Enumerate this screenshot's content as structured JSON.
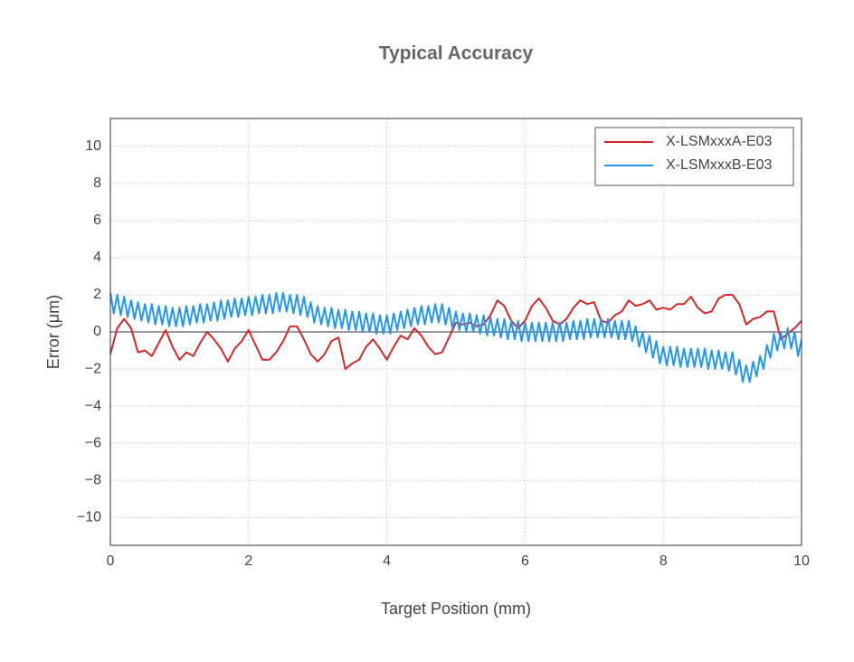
{
  "chart_data": {
    "type": "line",
    "title": "Typical Accuracy",
    "x_label": "Target Position (mm)",
    "y_label": "Error (μm)",
    "xlim": [
      0,
      10
    ],
    "ylim": [
      -11.5,
      11.5
    ],
    "xticks": [
      0,
      2,
      4,
      6,
      8,
      10
    ],
    "yticks": [
      {
        "value": -10,
        "label": "−10"
      },
      {
        "value": -8,
        "label": "−8"
      },
      {
        "value": -6,
        "label": "−6"
      },
      {
        "value": -4,
        "label": "−4"
      },
      {
        "value": -2,
        "label": "−2"
      },
      0,
      2,
      4,
      6,
      8,
      10
    ],
    "grid": true,
    "legend": "upper right",
    "axhline": 0,
    "series": [
      {
        "name": "X-LSMxxxA-E03",
        "color": "#d62728",
        "x": [
          0,
          0.1,
          0.2,
          0.3,
          0.4,
          0.5,
          0.6,
          0.7,
          0.8,
          0.9,
          1,
          1.1,
          1.2,
          1.3,
          1.4,
          1.5,
          1.6,
          1.7,
          1.8,
          1.9,
          2,
          2.1,
          2.2,
          2.3,
          2.4,
          2.5,
          2.6,
          2.7,
          2.8,
          2.9,
          3,
          3.1,
          3.2,
          3.3,
          3.4,
          3.5,
          3.6,
          3.7,
          3.8,
          3.9,
          4,
          4.1,
          4.2,
          4.3,
          4.4,
          4.5,
          4.6,
          4.7,
          4.8,
          4.9,
          5,
          5.1,
          5.2,
          5.3,
          5.4,
          5.5,
          5.6,
          5.7,
          5.8,
          5.9,
          6,
          6.1,
          6.2,
          6.3,
          6.4,
          6.5,
          6.6,
          6.7,
          6.8,
          6.9,
          7,
          7.1,
          7.2,
          7.3,
          7.4,
          7.5,
          7.6,
          7.7,
          7.8,
          7.9,
          8,
          8.1,
          8.2,
          8.3,
          8.4,
          8.5,
          8.6,
          8.7,
          8.8,
          8.9,
          9,
          9.1,
          9.2,
          9.3,
          9.4,
          9.5,
          9.6,
          9.7,
          9.8,
          9.9,
          10
        ],
        "values": [
          -1.2,
          0.2,
          0.7,
          0.2,
          -1.1,
          -1.0,
          -1.3,
          -0.6,
          0.1,
          -0.8,
          -1.5,
          -1.1,
          -1.3,
          -0.6,
          0.0,
          -0.4,
          -0.9,
          -1.6,
          -0.9,
          -0.5,
          0.1,
          -0.7,
          -1.5,
          -1.5,
          -1.1,
          -0.5,
          0.3,
          0.3,
          -0.4,
          -1.2,
          -1.6,
          -1.2,
          -0.5,
          -0.3,
          -2.0,
          -1.7,
          -1.5,
          -0.8,
          -0.4,
          -0.9,
          -1.5,
          -0.8,
          -0.2,
          -0.4,
          0.2,
          -0.2,
          -0.8,
          -1.2,
          -1.1,
          -0.3,
          0.5,
          0.4,
          0.5,
          0.3,
          0.4,
          0.9,
          1.7,
          1.4,
          0.6,
          0.2,
          0.6,
          1.4,
          1.8,
          1.3,
          0.6,
          0.4,
          0.7,
          1.3,
          1.7,
          1.5,
          1.6,
          0.6,
          0.5,
          0.9,
          1.1,
          1.7,
          1.4,
          1.5,
          1.7,
          1.2,
          1.3,
          1.2,
          1.5,
          1.5,
          1.9,
          1.3,
          1.0,
          1.1,
          1.8,
          2.0,
          2.0,
          1.5,
          0.4,
          0.7,
          0.8,
          1.1,
          1.1,
          -0.4,
          -0.1,
          0.2,
          0.6
        ]
      },
      {
        "name": "X-LSMxxxB-E03",
        "color": "#2196f3",
        "x": [
          0,
          0.05,
          0.1,
          0.15,
          0.2,
          0.25,
          0.3,
          0.35,
          0.4,
          0.45,
          0.5,
          0.55,
          0.6,
          0.65,
          0.7,
          0.75,
          0.8,
          0.85,
          0.9,
          0.95,
          1,
          1.05,
          1.1,
          1.15,
          1.2,
          1.25,
          1.3,
          1.35,
          1.4,
          1.45,
          1.5,
          1.55,
          1.6,
          1.65,
          1.7,
          1.75,
          1.8,
          1.85,
          1.9,
          1.95,
          2,
          2.05,
          2.1,
          2.15,
          2.2,
          2.25,
          2.3,
          2.35,
          2.4,
          2.45,
          2.5,
          2.55,
          2.6,
          2.65,
          2.7,
          2.75,
          2.8,
          2.85,
          2.9,
          2.95,
          3,
          3.05,
          3.1,
          3.15,
          3.2,
          3.25,
          3.3,
          3.35,
          3.4,
          3.45,
          3.5,
          3.55,
          3.6,
          3.65,
          3.7,
          3.75,
          3.8,
          3.85,
          3.9,
          3.95,
          4,
          4.05,
          4.1,
          4.15,
          4.2,
          4.25,
          4.3,
          4.35,
          4.4,
          4.45,
          4.5,
          4.55,
          4.6,
          4.65,
          4.7,
          4.75,
          4.8,
          4.85,
          4.9,
          4.95,
          5,
          5.05,
          5.1,
          5.15,
          5.2,
          5.25,
          5.3,
          5.35,
          5.4,
          5.45,
          5.5,
          5.55,
          5.6,
          5.65,
          5.7,
          5.75,
          5.8,
          5.85,
          5.9,
          5.95,
          6,
          6.05,
          6.1,
          6.15,
          6.2,
          6.25,
          6.3,
          6.35,
          6.4,
          6.45,
          6.5,
          6.55,
          6.6,
          6.65,
          6.7,
          6.75,
          6.8,
          6.85,
          6.9,
          6.95,
          7,
          7.05,
          7.1,
          7.15,
          7.2,
          7.25,
          7.3,
          7.35,
          7.4,
          7.45,
          7.5,
          7.55,
          7.6,
          7.65,
          7.7,
          7.75,
          7.8,
          7.85,
          7.9,
          7.95,
          8,
          8.05,
          8.1,
          8.15,
          8.2,
          8.25,
          8.3,
          8.35,
          8.4,
          8.45,
          8.5,
          8.55,
          8.6,
          8.65,
          8.7,
          8.75,
          8.8,
          8.85,
          8.9,
          8.95,
          9,
          9.05,
          9.1,
          9.15,
          9.2,
          9.25,
          9.3,
          9.35,
          9.4,
          9.45,
          9.5,
          9.55,
          9.6,
          9.65,
          9.7,
          9.75,
          9.8,
          9.85,
          9.9,
          9.95,
          10
        ],
        "values": [
          2.1,
          1.0,
          2.0,
          0.9,
          1.9,
          0.8,
          1.7,
          0.7,
          1.6,
          0.6,
          1.5,
          0.5,
          1.5,
          0.4,
          1.4,
          0.4,
          1.4,
          0.3,
          1.3,
          0.3,
          1.3,
          0.3,
          1.4,
          0.4,
          1.4,
          0.5,
          1.5,
          0.5,
          1.5,
          0.6,
          1.6,
          0.6,
          1.7,
          0.7,
          1.7,
          0.8,
          1.8,
          0.8,
          1.8,
          0.9,
          1.9,
          0.9,
          1.9,
          1.0,
          2.0,
          1.0,
          2.0,
          1.0,
          2.1,
          1.1,
          2.1,
          1.1,
          2.0,
          1.0,
          2.0,
          0.9,
          1.9,
          0.8,
          1.6,
          0.5,
          1.4,
          0.4,
          1.3,
          0.3,
          1.3,
          0.2,
          1.2,
          0.2,
          1.2,
          0.1,
          1.1,
          0.1,
          1.1,
          0.0,
          1.0,
          0.0,
          1.0,
          -0.1,
          0.9,
          -0.1,
          0.9,
          -0.1,
          1.0,
          0.1,
          1.1,
          0.2,
          1.2,
          0.3,
          1.3,
          0.4,
          1.4,
          0.4,
          1.4,
          0.5,
          1.5,
          0.5,
          1.5,
          0.4,
          1.3,
          0.2,
          1.1,
          0.1,
          1.0,
          0.0,
          1.0,
          0.0,
          0.9,
          -0.1,
          0.9,
          -0.2,
          0.8,
          -0.2,
          0.7,
          -0.3,
          0.7,
          -0.4,
          0.6,
          -0.4,
          0.6,
          -0.5,
          0.5,
          -0.5,
          0.5,
          -0.5,
          0.5,
          -0.5,
          0.5,
          -0.5,
          0.5,
          -0.5,
          0.5,
          -0.5,
          0.5,
          -0.4,
          0.6,
          -0.4,
          0.6,
          -0.4,
          0.7,
          -0.3,
          0.7,
          -0.3,
          0.7,
          -0.3,
          0.7,
          -0.3,
          0.6,
          -0.4,
          0.6,
          -0.4,
          0.6,
          -0.5,
          0.3,
          -0.8,
          0.0,
          -1.1,
          -0.2,
          -1.4,
          -0.5,
          -1.7,
          -0.8,
          -1.8,
          -0.8,
          -1.8,
          -0.8,
          -1.9,
          -0.9,
          -1.9,
          -0.9,
          -1.9,
          -0.9,
          -1.9,
          -0.9,
          -2.0,
          -1.0,
          -2.0,
          -1.0,
          -2.0,
          -1.1,
          -2.1,
          -1.1,
          -2.3,
          -1.5,
          -2.7,
          -1.8,
          -2.7,
          -1.6,
          -2.4,
          -1.3,
          -2.0,
          -0.7,
          -1.4,
          -0.1,
          -1.0,
          0.0,
          -0.9,
          0.2,
          -0.9,
          0.0,
          -1.3,
          -0.4
        ]
      }
    ]
  }
}
